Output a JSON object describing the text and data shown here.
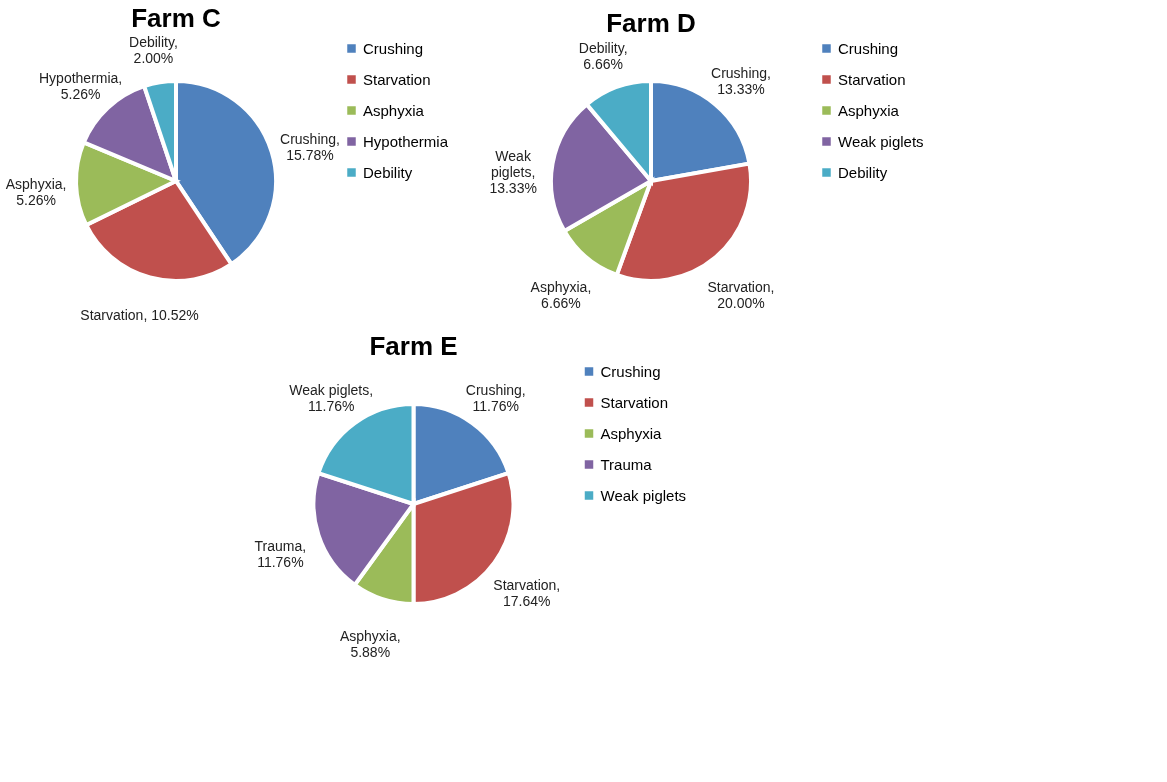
{
  "chart_data": [
    {
      "type": "pie",
      "title": "Farm C",
      "categories": [
        "Crushing",
        "Starvation",
        "Asphyxia",
        "Hypothermia",
        "Debility"
      ],
      "values": [
        15.78,
        10.52,
        5.26,
        5.26,
        2.0
      ],
      "colors": [
        "#4f81bd",
        "#c0504d",
        "#9bbb59",
        "#8064a2",
        "#4bacc6"
      ],
      "value_labels": [
        "Crushing,\n15.78%",
        "Starvation, 10.52%",
        "Asphyxia,\n5.26%",
        "Hypothermia,\n5.26%",
        "Debility,\n2.00%"
      ],
      "legend": "right"
    },
    {
      "type": "pie",
      "title": "Farm D",
      "categories": [
        "Crushing",
        "Starvation",
        "Asphyxia",
        "Weak piglets",
        "Debility"
      ],
      "values": [
        13.33,
        20.0,
        6.66,
        13.33,
        6.66
      ],
      "colors": [
        "#4f81bd",
        "#c0504d",
        "#9bbb59",
        "#8064a2",
        "#4bacc6"
      ],
      "value_labels": [
        "Crushing,\n13.33%",
        "Starvation,\n20.00%",
        "Asphyxia,\n6.66%",
        "Weak\npiglets,\n13.33%",
        "Debility,\n6.66%"
      ],
      "legend": "right"
    },
    {
      "type": "pie",
      "title": "Farm E",
      "categories": [
        "Crushing",
        "Starvation",
        "Asphyxia",
        "Trauma",
        "Weak piglets"
      ],
      "values": [
        11.76,
        17.64,
        5.88,
        11.76,
        11.76
      ],
      "colors": [
        "#4f81bd",
        "#c0504d",
        "#9bbb59",
        "#8064a2",
        "#4bacc6"
      ],
      "value_labels": [
        "Crushing,\n11.76%",
        "Starvation,\n17.64%",
        "Asphyxia,\n5.88%",
        "Trauma,\n11.76%",
        "Weak piglets,\n11.76%"
      ],
      "legend": "right"
    }
  ]
}
